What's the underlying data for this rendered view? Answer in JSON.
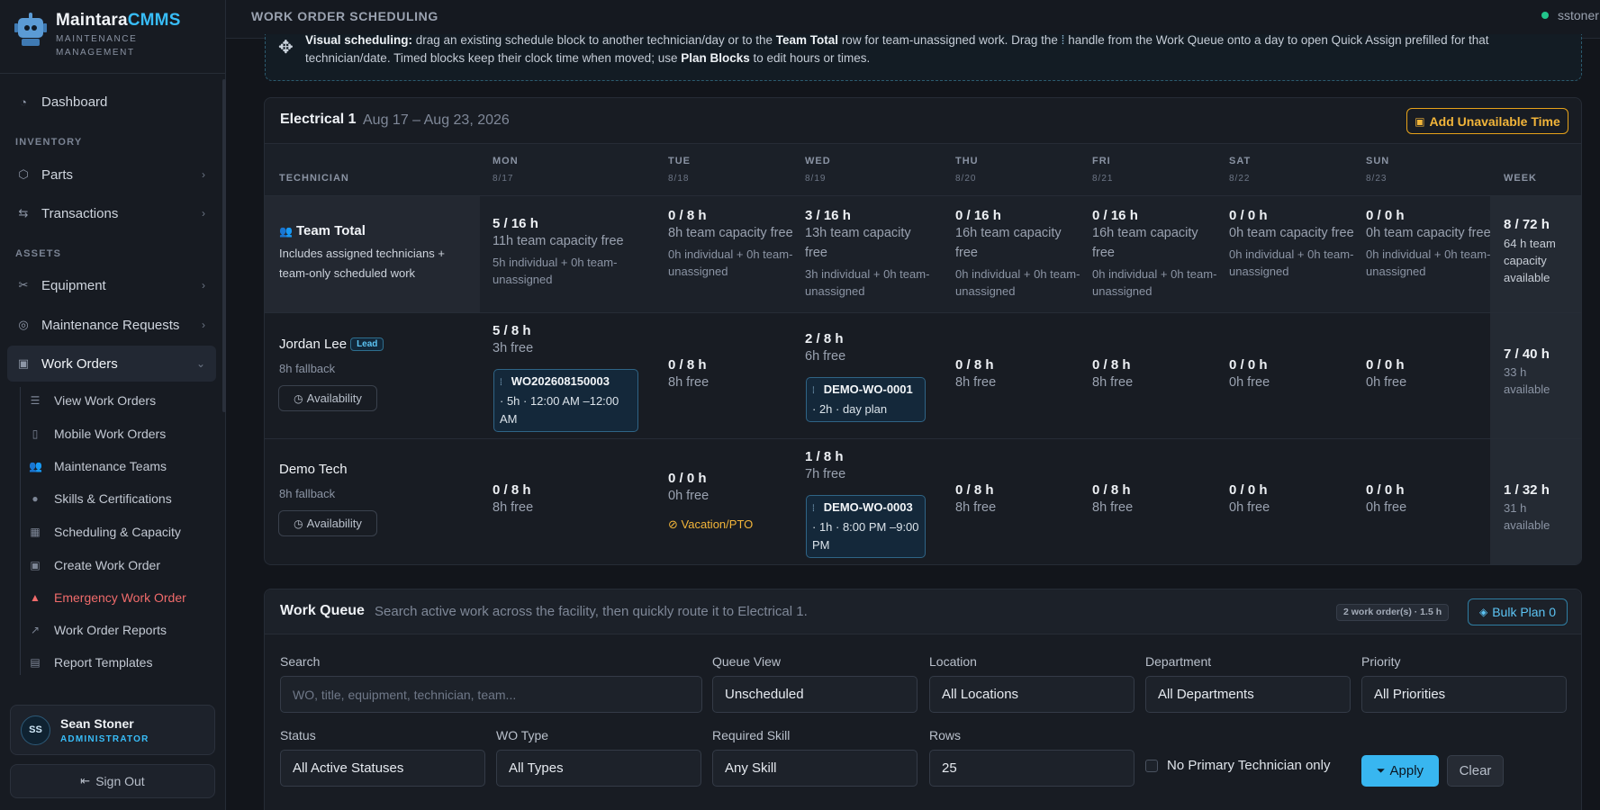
{
  "brand": {
    "name_main": "Maintara",
    "name_accent": "CMMS",
    "subtitle_line1": "MAINTENANCE",
    "subtitle_line2": "MANAGEMENT"
  },
  "sidebar": {
    "dashboard": "Dashboard",
    "section_inventory": "INVENTORY",
    "parts": "Parts",
    "transactions": "Transactions",
    "section_assets": "ASSETS",
    "equipment": "Equipment",
    "maintenance_requests": "Maintenance Requests",
    "work_orders": "Work Orders",
    "sub_items": [
      {
        "label": "View Work Orders",
        "icon": "list-icon"
      },
      {
        "label": "Mobile Work Orders",
        "icon": "mobile-icon"
      },
      {
        "label": "Maintenance Teams",
        "icon": "team-icon"
      },
      {
        "label": "Skills & Certifications",
        "icon": "badge-icon"
      },
      {
        "label": "Scheduling & Capacity",
        "icon": "calendar-check-icon"
      },
      {
        "label": "Create Work Order",
        "icon": "clipboard-plus-icon"
      },
      {
        "label": "Emergency Work Order",
        "icon": "warning-icon"
      },
      {
        "label": "Work Order Reports",
        "icon": "chart-line-icon"
      },
      {
        "label": "Report Templates",
        "icon": "template-icon"
      }
    ],
    "user": {
      "initials": "SS",
      "name": "Sean Stoner",
      "role": "ADMINISTRATOR"
    },
    "sign_out": "Sign Out"
  },
  "topbar": {
    "title": "WORK ORDER SCHEDULING",
    "user": "sstoner"
  },
  "hint": {
    "bold1": "Visual scheduling:",
    "text1": " drag an existing schedule block to another technician/day or to the ",
    "bold2": "Team Total",
    "text2": " row for team-unassigned work. Drag the ",
    "text3": " handle from the Work Queue onto a day to open Quick Assign prefilled for that",
    "line2a": "technician/date. Timed blocks keep their clock time when moved; use ",
    "bold3": "Plan Blocks",
    "line2b": " to edit hours or times."
  },
  "schedule": {
    "team": "Electrical 1",
    "dates": "Aug 17 – Aug 23, 2026",
    "add_unavailable": "Add Unavailable Time",
    "col_technician": "TECHNICIAN",
    "col_week": "WEEK",
    "days": [
      {
        "name": "MON",
        "date": "8/17"
      },
      {
        "name": "TUE",
        "date": "8/18"
      },
      {
        "name": "WED",
        "date": "8/19"
      },
      {
        "name": "THU",
        "date": "8/20"
      },
      {
        "name": "FRI",
        "date": "8/21"
      },
      {
        "name": "SAT",
        "date": "8/22"
      },
      {
        "name": "SUN",
        "date": "8/23"
      }
    ],
    "team_total": {
      "title": "Team Total",
      "desc": "Includes assigned technicians + team-only scheduled work",
      "cells": [
        {
          "hours": "5 / 16 h",
          "free": "11h team capacity free",
          "detail": "5h individual + 0h team-unassigned"
        },
        {
          "hours": "0 / 8 h",
          "free": "8h team capacity free",
          "detail": "0h individual + 0h team-unassigned"
        },
        {
          "hours": "3 / 16 h",
          "free": "13h team capacity free",
          "detail": "3h individual + 0h team-unassigned"
        },
        {
          "hours": "0 / 16 h",
          "free": "16h team capacity free",
          "detail": "0h individual + 0h team-unassigned"
        },
        {
          "hours": "0 / 16 h",
          "free": "16h team capacity free",
          "detail": "0h individual + 0h team-unassigned"
        },
        {
          "hours": "0 / 0 h",
          "free": "0h team capacity free",
          "detail": "0h individual + 0h team-unassigned"
        },
        {
          "hours": "0 / 0 h",
          "free": "0h team capacity free",
          "detail": "0h individual + 0h team-unassigned"
        }
      ],
      "week": {
        "hours": "8 / 72 h",
        "free": "64 h team capacity available"
      }
    },
    "technicians": [
      {
        "name": "Jordan Lee",
        "badge": "Lead",
        "fallback": "8h fallback",
        "availability": "Availability",
        "cells": [
          {
            "hours": "5 / 8 h",
            "free": "3h free"
          },
          {
            "hours": "0 / 8 h",
            "free": "8h free"
          },
          {
            "hours": "2 / 8 h",
            "free": "6h free"
          },
          {
            "hours": "0 / 8 h",
            "free": "8h free"
          },
          {
            "hours": "0 / 8 h",
            "free": "8h free"
          },
          {
            "hours": "0 / 0 h",
            "free": "0h free"
          },
          {
            "hours": "0 / 0 h",
            "free": "0h free"
          }
        ],
        "blocks": [
          {
            "wo": "WO202608150003",
            "detail": "· 5h · 12:00 AM –12:00 AM"
          },
          {
            "wo": "DEMO-WO-0001",
            "detail": "· 2h · day plan"
          }
        ],
        "week": {
          "hours": "7 / 40 h",
          "free": "33 h available"
        }
      },
      {
        "name": "Demo Tech",
        "fallback": "8h fallback",
        "availability": "Availability",
        "cells": [
          {
            "hours": "0 / 8 h",
            "free": "8h free"
          },
          {
            "hours": "0 / 0 h",
            "free": "0h free"
          },
          {
            "hours": "1 / 8 h",
            "free": "7h free"
          },
          {
            "hours": "0 / 8 h",
            "free": "8h free"
          },
          {
            "hours": "0 / 8 h",
            "free": "8h free"
          },
          {
            "hours": "0 / 0 h",
            "free": "0h free"
          },
          {
            "hours": "0 / 0 h",
            "free": "0h free"
          }
        ],
        "pto": "Vacation/PTO",
        "blocks": [
          {
            "wo": "DEMO-WO-0003",
            "detail": "· 1h · 8:00 PM –9:00 PM"
          }
        ],
        "week": {
          "hours": "1 / 32 h",
          "free": "31 h available"
        }
      }
    ]
  },
  "queue": {
    "title": "Work Queue",
    "desc": "Search active work across the facility, then quickly route it to Electrical 1.",
    "count": "2 work order(s) · 1.5 h",
    "bulk": "Bulk Plan 0",
    "filters": {
      "search_label": "Search",
      "search_placeholder": "WO, title, equipment, technician, team...",
      "queue_view_label": "Queue View",
      "queue_view": "Unscheduled",
      "location_label": "Location",
      "location": "All Locations",
      "department_label": "Department",
      "department": "All Departments",
      "priority_label": "Priority",
      "priority": "All Priorities",
      "status_label": "Status",
      "status": "All Active Statuses",
      "wo_type_label": "WO Type",
      "wo_type": "All Types",
      "skill_label": "Required Skill",
      "skill": "Any Skill",
      "rows_label": "Rows",
      "rows": "25",
      "no_primary": "No Primary Technician only",
      "apply": "Apply",
      "clear": "Clear"
    }
  }
}
